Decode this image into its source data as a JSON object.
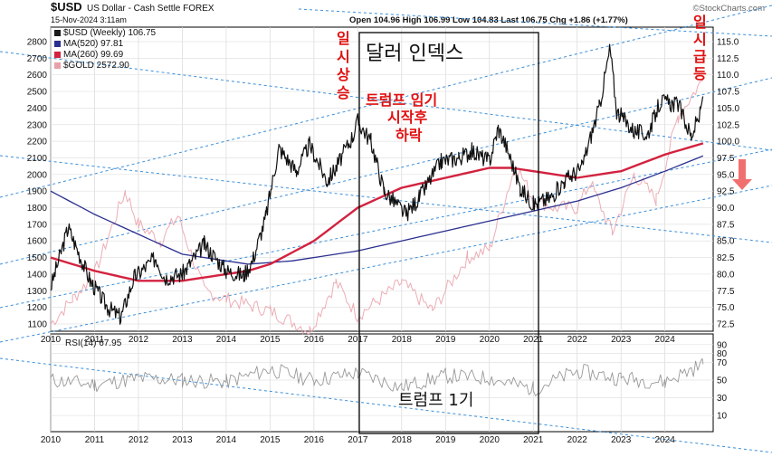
{
  "header": {
    "symbol": "$USD",
    "name": "US Dollar - Cash Settle FOREX",
    "date": "15-Nov-2024 3:11am",
    "ohlc": "Open 104.96  High 106.99  Low 104.83  Last 106.75  Chg +1.86 (+1.77%)",
    "brand": "©StockCharts.com"
  },
  "legend": [
    {
      "label": "$USD (Weekly) 106.75",
      "color": "#1a1a1a"
    },
    {
      "label": "MA(520) 97.81",
      "color": "#2b2f8f"
    },
    {
      "label": "MA(260) 99.69",
      "color": "#d3223f"
    },
    {
      "label": "$GOLD 2572.90",
      "color": "#e8a0a8"
    }
  ],
  "rsi_label": "RSI(14) 67.95",
  "annotations": {
    "title": "달러 인덱스",
    "trump_start": "트럼프 임기",
    "trump_start2": "시작후",
    "trump_start3": "하락",
    "peak_left": "일시상승",
    "peak_right": "일시급등",
    "term_label": "트럼프 1기"
  },
  "colors": {
    "usd": "#111111",
    "ma520": "#2b2f8f",
    "ma260": "#d3223f",
    "gold": "#eaa4ad",
    "channel": "#3b8fd9",
    "annotation": "#e01010",
    "arrow": "#f07070"
  },
  "chart_data": {
    "type": "line",
    "x_ticks": [
      "2010",
      "2011",
      "2012",
      "2013",
      "2014",
      "2015",
      "2016",
      "2017",
      "2018",
      "2019",
      "2020",
      "2021",
      "2022",
      "2023",
      "2024"
    ],
    "y_right_ticks": [
      72.5,
      75.0,
      77.5,
      80.0,
      82.5,
      85.0,
      87.5,
      90.0,
      92.5,
      95.0,
      97.5,
      100.0,
      102.5,
      105.0,
      107.5,
      110.0,
      112.5,
      115.0
    ],
    "y_left_ticks": [
      1100,
      1200,
      1300,
      1400,
      1500,
      1600,
      1700,
      1800,
      1900,
      2000,
      2100,
      2200,
      2300,
      2400,
      2500,
      2600,
      2700,
      2800
    ],
    "ylim_right": [
      72.5,
      115.0
    ],
    "ylim_left": [
      1100,
      2800
    ],
    "rsi_ticks": [
      10,
      30,
      50,
      70,
      80,
      90
    ],
    "series": [
      {
        "name": "$USD (Weekly)",
        "axis": "right",
        "x": [
          2010.0,
          2010.4,
          2010.9,
          2011.3,
          2011.6,
          2011.9,
          2012.4,
          2012.6,
          2013.0,
          2013.5,
          2014.0,
          2014.4,
          2014.6,
          2014.9,
          2015.2,
          2015.6,
          2015.9,
          2016.3,
          2016.5,
          2016.9,
          2017.0,
          2017.3,
          2017.6,
          2018.1,
          2018.4,
          2018.9,
          2019.3,
          2019.6,
          2020.0,
          2020.2,
          2020.4,
          2020.7,
          2021.0,
          2021.4,
          2021.7,
          2022.1,
          2022.5,
          2022.75,
          2022.9,
          2023.3,
          2023.6,
          2023.9,
          2024.3,
          2024.6,
          2024.8,
          2024.87
        ],
        "values": [
          78.0,
          87.0,
          79.0,
          75.0,
          73.5,
          79.5,
          82.5,
          79.5,
          80.0,
          84.5,
          80.5,
          79.8,
          82.0,
          88.5,
          99.0,
          95.5,
          99.5,
          94.0,
          96.0,
          101.0,
          103.0,
          100.0,
          92.5,
          89.0,
          91.5,
          97.0,
          97.5,
          98.5,
          97.0,
          102.0,
          99.0,
          93.0,
          90.5,
          91.5,
          94.0,
          96.0,
          105.0,
          114.0,
          104.5,
          101.5,
          101.0,
          106.0,
          105.5,
          100.8,
          104.0,
          106.75
        ]
      },
      {
        "name": "MA(520)",
        "axis": "right",
        "x": [
          2010.0,
          2011.0,
          2012.0,
          2013.0,
          2014.0,
          2014.5,
          2015.5,
          2017.0,
          2018.0,
          2019.0,
          2020.0,
          2021.0,
          2022.0,
          2023.0,
          2024.0,
          2024.87
        ],
        "values": [
          92.5,
          89.0,
          86.0,
          83.0,
          82.0,
          81.5,
          82.0,
          83.5,
          85.0,
          86.5,
          88.0,
          89.5,
          91.0,
          93.0,
          95.5,
          97.81
        ]
      },
      {
        "name": "MA(260)",
        "axis": "right",
        "x": [
          2010.0,
          2011.0,
          2012.0,
          2013.0,
          2014.0,
          2014.5,
          2015.0,
          2016.0,
          2017.0,
          2018.0,
          2019.0,
          2020.0,
          2020.5,
          2021.0,
          2022.0,
          2023.0,
          2024.0,
          2024.87
        ],
        "values": [
          82.5,
          80.5,
          79.0,
          79.0,
          80.0,
          80.5,
          81.5,
          85.0,
          90.0,
          93.0,
          94.5,
          96.0,
          96.0,
          95.5,
          94.5,
          95.5,
          98.0,
          99.69
        ]
      },
      {
        "name": "$GOLD",
        "axis": "left",
        "x": [
          2010.0,
          2010.5,
          2011.0,
          2011.7,
          2012.0,
          2012.5,
          2012.9,
          2013.5,
          2014.0,
          2015.0,
          2015.9,
          2016.5,
          2017.0,
          2018.0,
          2018.7,
          2019.5,
          2020.0,
          2020.6,
          2021.0,
          2021.5,
          2022.0,
          2022.3,
          2022.8,
          2023.3,
          2023.8,
          2024.3,
          2024.87
        ],
        "values": [
          1100,
          1250,
          1400,
          1900,
          1700,
          1600,
          1750,
          1300,
          1250,
          1180,
          1060,
          1350,
          1150,
          1350,
          1180,
          1500,
          1550,
          2060,
          1850,
          1800,
          1800,
          1950,
          1650,
          2000,
          1850,
          2350,
          2572.9
        ]
      },
      {
        "name": "RSI(14)",
        "axis": "rsi",
        "x": [
          2010.0,
          2011.0,
          2012.0,
          2013.0,
          2014.0,
          2015.0,
          2016.0,
          2017.0,
          2018.0,
          2019.0,
          2020.0,
          2021.0,
          2022.0,
          2023.0,
          2024.0,
          2024.87
        ],
        "values": [
          50,
          45,
          52,
          50,
          48,
          62,
          50,
          58,
          42,
          55,
          52,
          40,
          60,
          52,
          48,
          67.95
        ]
      }
    ]
  }
}
